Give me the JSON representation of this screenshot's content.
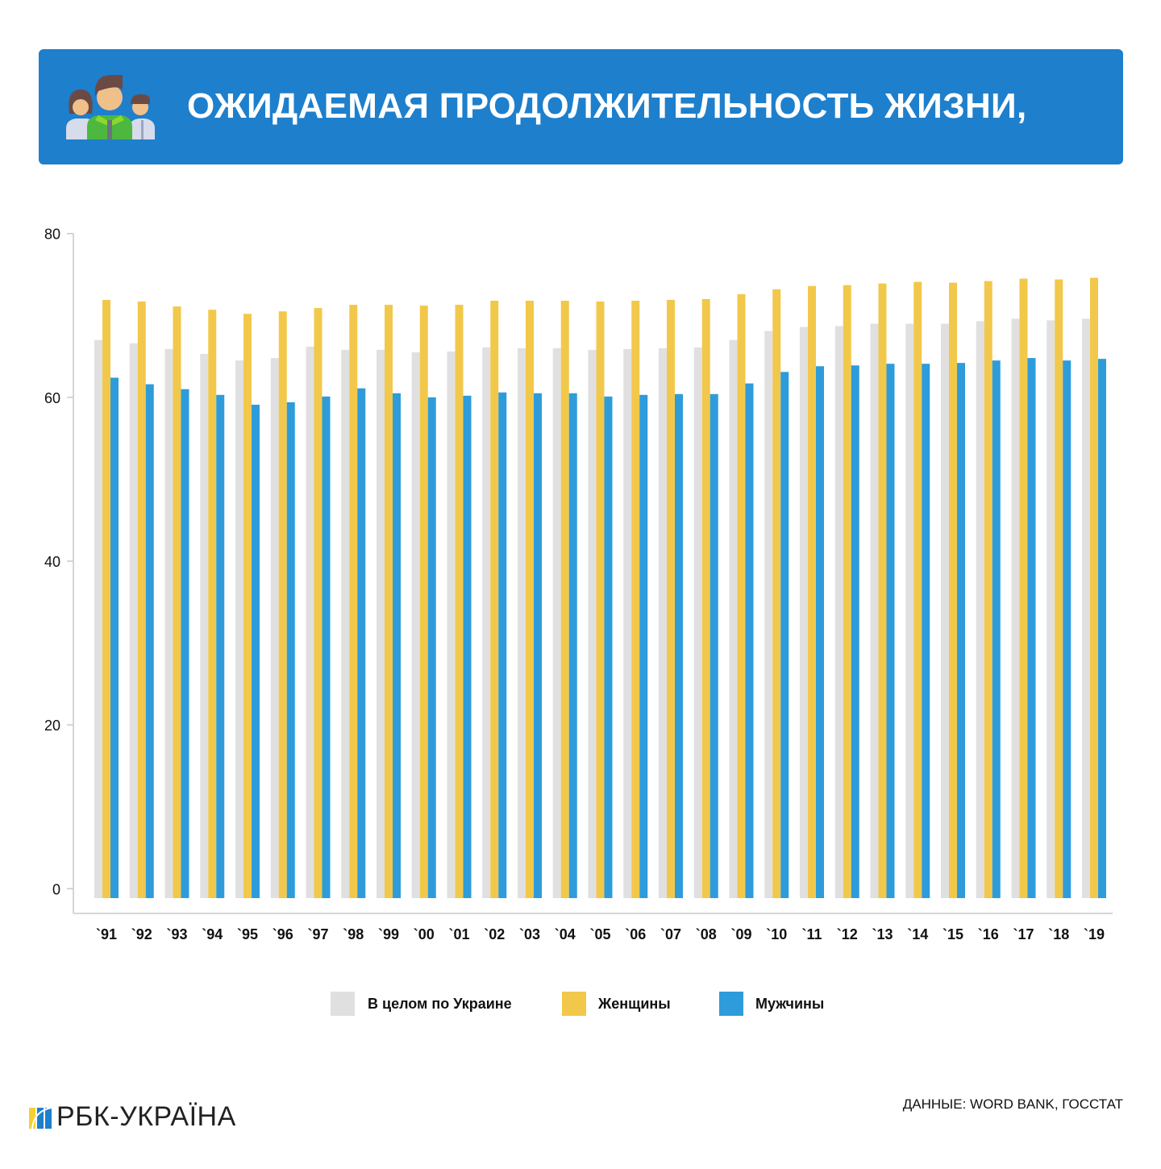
{
  "header": {
    "title": "ОЖИДАЕМАЯ ПРОДОЛЖИТЕЛЬНОСТЬ ЖИЗНИ,",
    "icon": "family-people-icon",
    "background": "#1E7FCC"
  },
  "chart_data": {
    "type": "bar",
    "title": "",
    "xlabel": "",
    "ylabel": "",
    "ylim": [
      0,
      80
    ],
    "yticks": [
      "0",
      "20",
      "40",
      "60",
      "80"
    ],
    "grid": false,
    "legend_position": "bottom",
    "categories": [
      "`91",
      "`92",
      "`93",
      "`94",
      "`95",
      "`96",
      "`97",
      "`98",
      "`99",
      "`00",
      "`01",
      "`02",
      "`03",
      "`04",
      "`05",
      "`06",
      "`07",
      "`08",
      "`09",
      "`10",
      "`11",
      "`12",
      "`13",
      "`14",
      "`15",
      "`16",
      "`17",
      "`18",
      "`19"
    ],
    "series": [
      {
        "name": "В целом по Украине",
        "color": "#E0E0E0",
        "values": [
          67.0,
          66.6,
          65.9,
          65.3,
          64.5,
          64.8,
          66.2,
          65.8,
          65.8,
          65.5,
          65.6,
          66.1,
          66.0,
          66.0,
          65.8,
          65.9,
          66.0,
          66.1,
          67.0,
          68.1,
          68.6,
          68.7,
          69.0,
          69.0,
          69.0,
          69.3,
          69.6,
          69.4,
          69.6
        ]
      },
      {
        "name": "Женщины",
        "color": "#F2C84B",
        "values": [
          71.9,
          71.7,
          71.1,
          70.7,
          70.2,
          70.5,
          70.9,
          71.3,
          71.3,
          71.2,
          71.3,
          71.8,
          71.8,
          71.8,
          71.7,
          71.8,
          71.9,
          72.0,
          72.6,
          73.2,
          73.6,
          73.7,
          73.9,
          74.1,
          74.0,
          74.2,
          74.5,
          74.4,
          74.6
        ]
      },
      {
        "name": "Мужчины",
        "color": "#2E9CDB",
        "values": [
          62.4,
          61.6,
          61.0,
          60.3,
          59.1,
          59.4,
          60.1,
          61.1,
          60.5,
          60.0,
          60.2,
          60.6,
          60.5,
          60.5,
          60.1,
          60.3,
          60.4,
          60.4,
          61.7,
          63.1,
          63.8,
          63.9,
          64.1,
          64.1,
          64.2,
          64.5,
          64.8,
          64.5,
          64.7
        ]
      }
    ]
  },
  "footer": {
    "brand": "РБК-УКРАЇНА",
    "source": "ДАННЫЕ: WORD BANK, ГОССТАТ"
  }
}
